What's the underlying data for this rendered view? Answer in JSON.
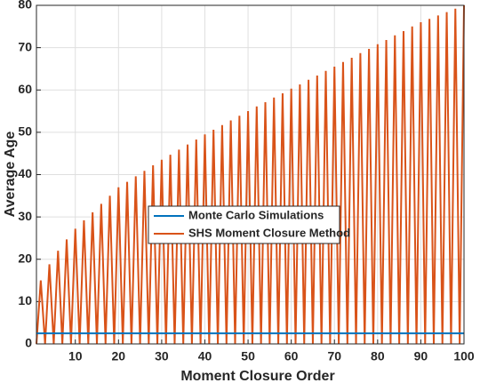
{
  "chart_data": {
    "type": "line",
    "xlabel": "Moment Closure Order",
    "ylabel": "Average Age",
    "x": [
      1,
      2,
      3,
      4,
      5,
      6,
      7,
      8,
      9,
      10,
      11,
      12,
      13,
      14,
      15,
      16,
      17,
      18,
      19,
      20,
      21,
      22,
      23,
      24,
      25,
      26,
      27,
      28,
      29,
      30,
      31,
      32,
      33,
      34,
      35,
      36,
      37,
      38,
      39,
      40,
      41,
      42,
      43,
      44,
      45,
      46,
      47,
      48,
      49,
      50,
      51,
      52,
      53,
      54,
      55,
      56,
      57,
      58,
      59,
      60,
      61,
      62,
      63,
      64,
      65,
      66,
      67,
      68,
      69,
      70,
      71,
      72,
      73,
      74,
      75,
      76,
      77,
      78,
      79,
      80,
      81,
      82,
      83,
      84,
      85,
      86,
      87,
      88,
      89,
      90,
      91,
      92,
      93,
      94,
      95,
      96,
      97,
      98,
      99,
      100
    ],
    "series": [
      {
        "name": "Monte Carlo Simulations",
        "color": "#0072bd",
        "values": [
          2.5,
          2.5,
          2.5,
          2.5,
          2.5,
          2.5,
          2.5,
          2.5,
          2.5,
          2.5,
          2.5,
          2.5,
          2.5,
          2.5,
          2.5,
          2.5,
          2.5,
          2.5,
          2.5,
          2.5,
          2.5,
          2.5,
          2.5,
          2.5,
          2.5,
          2.5,
          2.5,
          2.5,
          2.5,
          2.5,
          2.5,
          2.5,
          2.5,
          2.5,
          2.5,
          2.5,
          2.5,
          2.5,
          2.5,
          2.5,
          2.5,
          2.5,
          2.5,
          2.5,
          2.5,
          2.5,
          2.5,
          2.5,
          2.5,
          2.5,
          2.5,
          2.5,
          2.5,
          2.5,
          2.5,
          2.5,
          2.5,
          2.5,
          2.5,
          2.5,
          2.5,
          2.5,
          2.5,
          2.5,
          2.5,
          2.5,
          2.5,
          2.5,
          2.5,
          2.5,
          2.5,
          2.5,
          2.5,
          2.5,
          2.5,
          2.5,
          2.5,
          2.5,
          2.5,
          2.5,
          2.5,
          2.5,
          2.5,
          2.5,
          2.5,
          2.5,
          2.5,
          2.5,
          2.5,
          2.5,
          2.5,
          2.5,
          2.5,
          2.5,
          2.5,
          2.5,
          2.5,
          2.5,
          2.5,
          2.5
        ]
      },
      {
        "name": "SHS Moment Closure Method",
        "color": "#d95319",
        "values": [
          0,
          15,
          0,
          18.8,
          0,
          22,
          0,
          24.7,
          0,
          27.2,
          0,
          29.2,
          0,
          31.1,
          0,
          33.1,
          0,
          35.0,
          0,
          37.0,
          0,
          38.3,
          0,
          39.6,
          0,
          40.9,
          0,
          42.2,
          0,
          43.5,
          0,
          44.7,
          0,
          45.9,
          0,
          47.1,
          0,
          48.3,
          0,
          49.5,
          0,
          50.6,
          0,
          51.7,
          0,
          52.8,
          0,
          53.9,
          0,
          55.0,
          0,
          56.1,
          0,
          57.1,
          0,
          58.2,
          0,
          59.2,
          0,
          60.3,
          0,
          61.3,
          0,
          62.4,
          0,
          63.4,
          0,
          64.5,
          0,
          65.5,
          0,
          66.6,
          0,
          67.6,
          0,
          68.7,
          0,
          69.7,
          0,
          70.8,
          0,
          71.8,
          0,
          72.9,
          0,
          73.9,
          0,
          75.0,
          0,
          76.0,
          0,
          76.8,
          0,
          77.6,
          0,
          78.4,
          0,
          79.2,
          0,
          80
        ]
      }
    ],
    "xlim": [
      1,
      100
    ],
    "xticks": [
      10,
      20,
      30,
      40,
      50,
      60,
      70,
      80,
      90,
      100
    ],
    "ylim": [
      0,
      80
    ],
    "yticks": [
      0,
      10,
      20,
      30,
      40,
      50,
      60,
      70,
      80
    ],
    "grid": true,
    "legend": "center"
  }
}
